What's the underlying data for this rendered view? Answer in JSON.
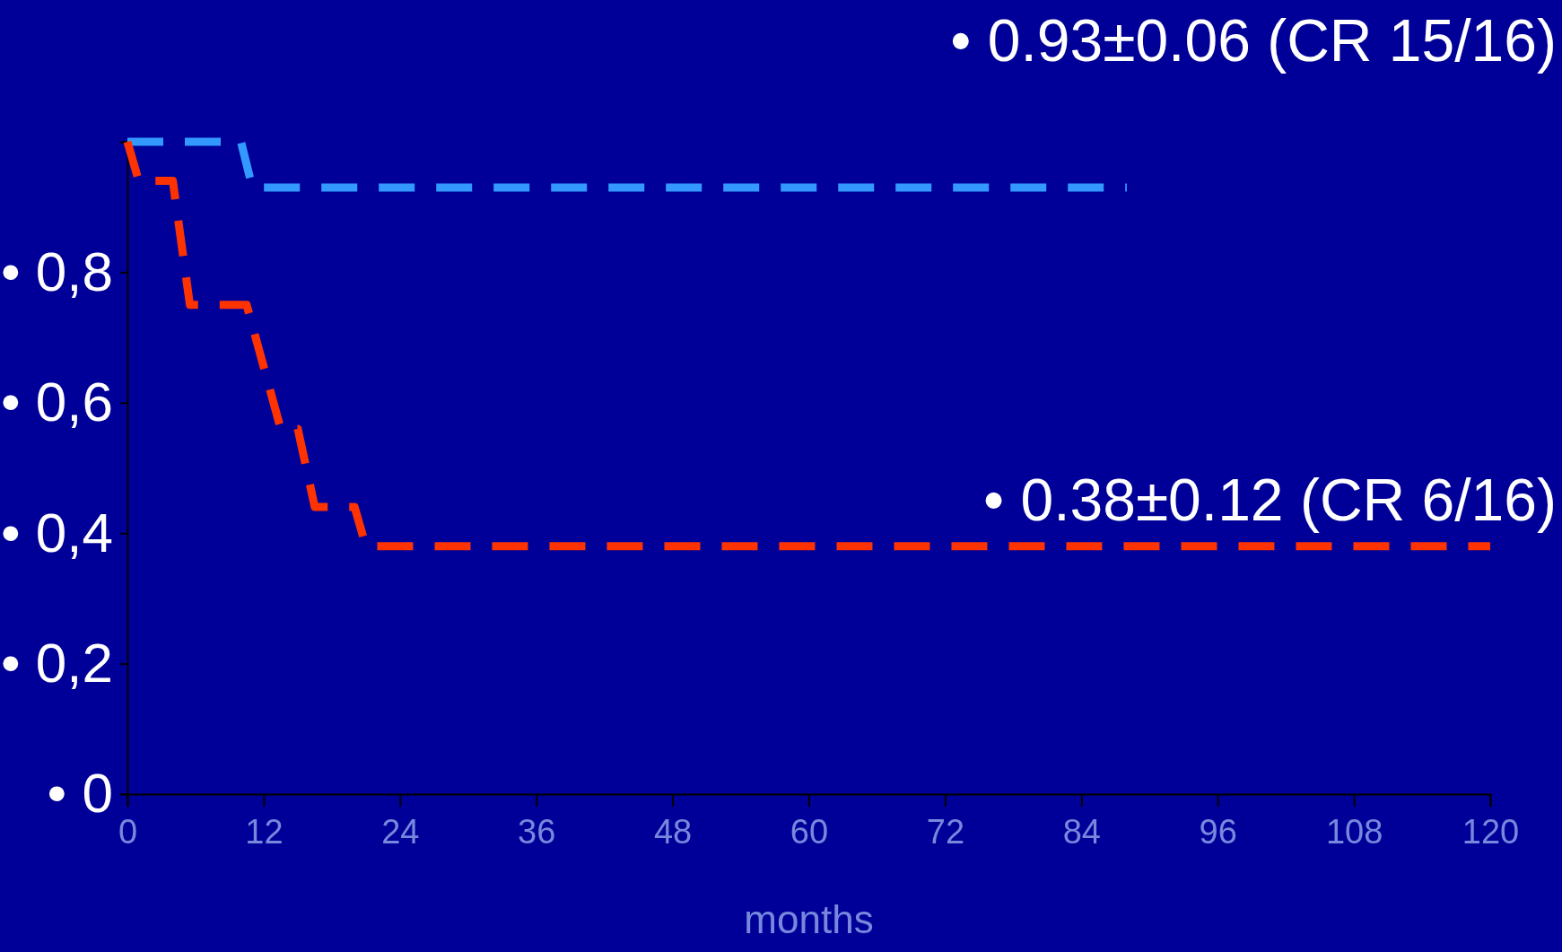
{
  "chart_data": {
    "type": "line",
    "xlabel": "months",
    "xlim": [
      0,
      120
    ],
    "xticks": [
      0,
      12,
      24,
      36,
      48,
      60,
      72,
      84,
      96,
      108,
      120
    ],
    "ylim": [
      0,
      1
    ],
    "yticks": [
      {
        "value": 0,
        "label": "• 0"
      },
      {
        "value": 0.2,
        "label": "• 0,2"
      },
      {
        "value": 0.4,
        "label": "• 0,4"
      },
      {
        "value": 0.6,
        "label": "• 0,6"
      },
      {
        "value": 0.8,
        "label": "• 0,8"
      },
      {
        "value": 1,
        "label": null
      }
    ],
    "line_style": "dashed",
    "marker": "none",
    "grid": false,
    "series": [
      {
        "color": "#3399ff",
        "x": [
          0,
          10,
          11,
          88
        ],
        "values": [
          1,
          1,
          0.93,
          0.93
        ]
      },
      {
        "color": "#ff3300",
        "x": [
          0,
          1,
          4,
          5.5,
          10.5,
          13.5,
          15,
          16.5,
          20,
          21,
          120
        ],
        "values": [
          1,
          0.94,
          0.94,
          0.75,
          0.75,
          0.56,
          0.56,
          0.44,
          0.44,
          0.38,
          0.38
        ]
      }
    ],
    "annotations": [
      "• 0.93±0.06 (CR 15/16)",
      "• 0.38±0.12 (CR 6/16)"
    ]
  }
}
